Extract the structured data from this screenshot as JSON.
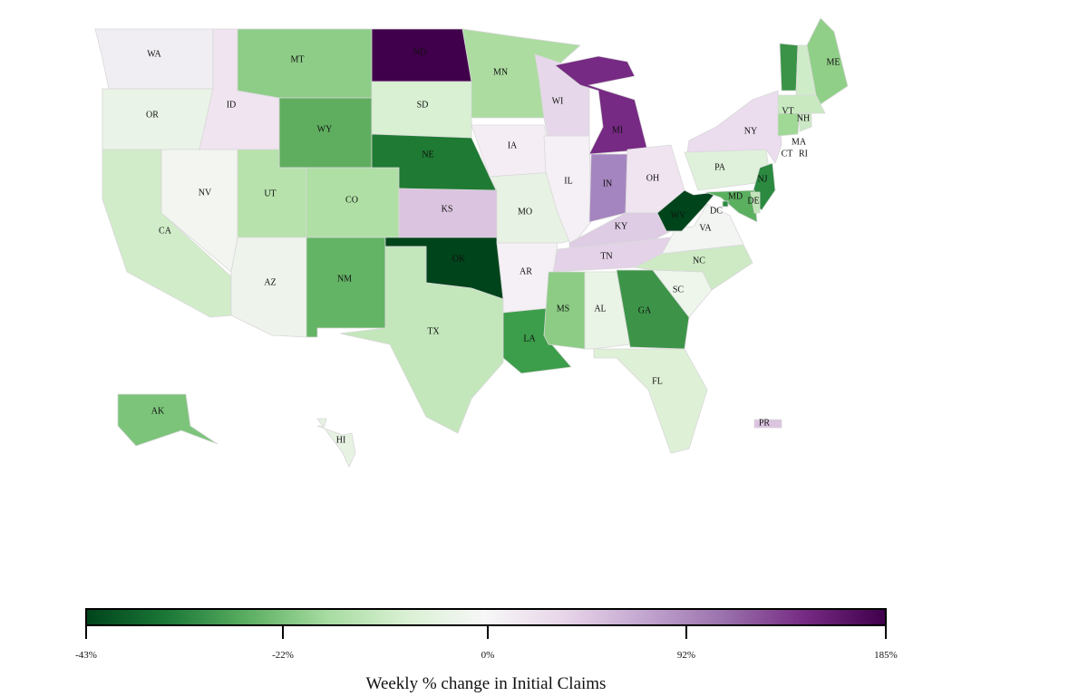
{
  "map": {
    "type": "choropleth",
    "region": "United States",
    "states": [
      {
        "id": "WA",
        "color": "#f1eef3"
      },
      {
        "id": "OR",
        "color": "#eaf3e7"
      },
      {
        "id": "CA",
        "color": "#d1ecc9"
      },
      {
        "id": "ID",
        "color": "#f0e4f0"
      },
      {
        "id": "NV",
        "color": "#f2f5f0"
      },
      {
        "id": "MT",
        "color": "#8dcd87"
      },
      {
        "id": "WY",
        "color": "#5fae5f"
      },
      {
        "id": "UT",
        "color": "#b7e2ac"
      },
      {
        "id": "CO",
        "color": "#afdfa4"
      },
      {
        "id": "AZ",
        "color": "#eef4ec"
      },
      {
        "id": "NM",
        "color": "#64b466"
      },
      {
        "id": "ND",
        "color": "#40004b"
      },
      {
        "id": "SD",
        "color": "#d9f0d3"
      },
      {
        "id": "NE",
        "color": "#1f7a33"
      },
      {
        "id": "KS",
        "color": "#dbc4df"
      },
      {
        "id": "OK",
        "color": "#00441b"
      },
      {
        "id": "TX",
        "color": "#c3e7bb"
      },
      {
        "id": "MN",
        "color": "#acdca0"
      },
      {
        "id": "IA",
        "color": "#f4eef4"
      },
      {
        "id": "MO",
        "color": "#e8f2e4"
      },
      {
        "id": "AR",
        "color": "#f4f0f5"
      },
      {
        "id": "LA",
        "color": "#3c9d4a"
      },
      {
        "id": "WI",
        "color": "#e6d8ea"
      },
      {
        "id": "IL",
        "color": "#f4f0f5"
      },
      {
        "id": "MI",
        "color": "#762a83"
      },
      {
        "id": "IN",
        "color": "#a585bf"
      },
      {
        "id": "OH",
        "color": "#f0e4f1"
      },
      {
        "id": "KY",
        "color": "#decbe4"
      },
      {
        "id": "TN",
        "color": "#e4d2e8"
      },
      {
        "id": "MS",
        "color": "#8ccc84"
      },
      {
        "id": "AL",
        "color": "#eaf4e6"
      },
      {
        "id": "GA",
        "color": "#3d9449"
      },
      {
        "id": "FL",
        "color": "#def1d7"
      },
      {
        "id": "SC",
        "color": "#eef6ec"
      },
      {
        "id": "NC",
        "color": "#cdeac5"
      },
      {
        "id": "VA",
        "color": "#f2f5f1"
      },
      {
        "id": "WV",
        "color": "#00441b"
      },
      {
        "id": "PA",
        "color": "#e0f1db"
      },
      {
        "id": "NY",
        "color": "#ebdcee"
      },
      {
        "id": "VT",
        "color": "#3a9346"
      },
      {
        "id": "NH",
        "color": "#cfecc8"
      },
      {
        "id": "ME",
        "color": "#90cf88"
      },
      {
        "id": "MA",
        "color": "#c9e9c1"
      },
      {
        "id": "CT",
        "color": "#a0d895"
      },
      {
        "id": "RI",
        "color": "#cbe9c4"
      },
      {
        "id": "NJ",
        "color": "#2b8a40"
      },
      {
        "id": "MD",
        "color": "#5bb060"
      },
      {
        "id": "DE",
        "color": "#c0e5b6"
      },
      {
        "id": "DC",
        "color": "#2b8a40"
      },
      {
        "id": "AK",
        "color": "#7cc47a"
      },
      {
        "id": "HI",
        "color": "#e7f2e3"
      },
      {
        "id": "PR",
        "color": "#dbc4df"
      }
    ]
  },
  "legend": {
    "title": "Weekly % change in Initial Claims",
    "colorscale": [
      "#00441b",
      "#1b7837",
      "#5aae61",
      "#a6dba0",
      "#d9f0d3",
      "#f7f7f7",
      "#e7d4e8",
      "#c2a5cf",
      "#9970ab",
      "#762a83",
      "#40004b"
    ],
    "ticks": [
      "-43%",
      "-22%",
      "0%",
      "92%",
      "185%"
    ]
  }
}
